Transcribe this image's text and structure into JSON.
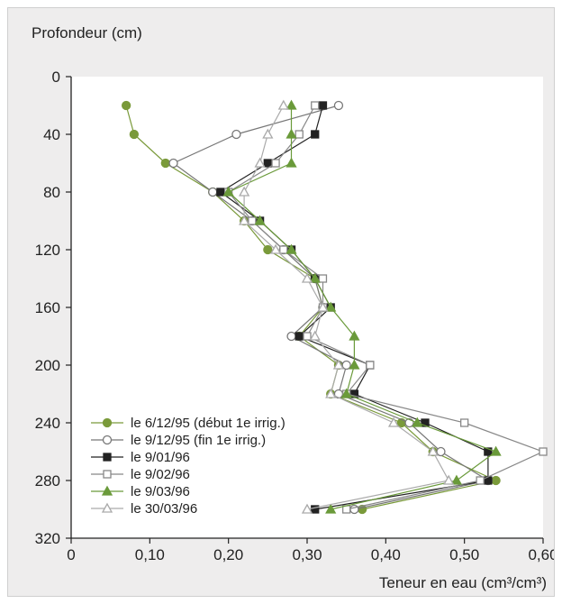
{
  "chart_data": {
    "type": "line",
    "ylabel": "Profondeur (cm)",
    "xlabel": "Teneur en eau (cm³/cm³)",
    "xlim": [
      0,
      0.6
    ],
    "ylim": [
      0,
      320
    ],
    "y_inverted": true,
    "grid": false,
    "legend_position": "bottom-left",
    "xticks": [
      "0",
      "0,10",
      "0,20",
      "0,30",
      "0,40",
      "0,50",
      "0,60"
    ],
    "xtick_values": [
      0,
      0.1,
      0.2,
      0.3,
      0.4,
      0.5,
      0.6
    ],
    "yticks": [
      "0",
      "40",
      "80",
      "120",
      "160",
      "200",
      "240",
      "280",
      "320"
    ],
    "ytick_values": [
      0,
      40,
      80,
      120,
      160,
      200,
      240,
      280,
      320
    ],
    "series": [
      {
        "name": "le 6/12/95 (début 1e irrig.)",
        "marker": "circle-filled",
        "color": "#7a9a3a",
        "points": [
          [
            0.07,
            20
          ],
          [
            0.08,
            40
          ],
          [
            0.12,
            60
          ],
          [
            0.18,
            80
          ],
          [
            0.22,
            100
          ],
          [
            0.25,
            120
          ],
          [
            0.31,
            140
          ],
          [
            0.32,
            160
          ],
          [
            0.29,
            180
          ],
          [
            0.34,
            200
          ],
          [
            0.33,
            220
          ],
          [
            0.42,
            240
          ],
          [
            0.46,
            260
          ],
          [
            0.54,
            280
          ],
          [
            0.37,
            300
          ]
        ]
      },
      {
        "name": "le 9/12/95 (fin 1e irrig.)",
        "marker": "circle-open",
        "color": "#777777",
        "points": [
          [
            0.34,
            20
          ],
          [
            0.21,
            40
          ],
          [
            0.13,
            60
          ],
          [
            0.18,
            80
          ],
          [
            0.23,
            100
          ],
          [
            0.27,
            120
          ],
          [
            0.31,
            140
          ],
          [
            0.32,
            160
          ],
          [
            0.28,
            180
          ],
          [
            0.35,
            200
          ],
          [
            0.34,
            220
          ],
          [
            0.43,
            240
          ],
          [
            0.47,
            260
          ],
          [
            0.53,
            280
          ],
          [
            0.36,
            300
          ]
        ]
      },
      {
        "name": "le 9/01/96",
        "marker": "square-filled",
        "color": "#222222",
        "points": [
          [
            0.32,
            20
          ],
          [
            0.31,
            40
          ],
          [
            0.25,
            60
          ],
          [
            0.19,
            80
          ],
          [
            0.24,
            100
          ],
          [
            0.28,
            120
          ],
          [
            0.31,
            140
          ],
          [
            0.33,
            160
          ],
          [
            0.29,
            180
          ],
          [
            0.38,
            200
          ],
          [
            0.36,
            220
          ],
          [
            0.45,
            240
          ],
          [
            0.53,
            260
          ],
          [
            0.53,
            280
          ],
          [
            0.31,
            300
          ]
        ]
      },
      {
        "name": "le 9/02/96",
        "marker": "square-open",
        "color": "#888888",
        "points": [
          [
            0.31,
            20
          ],
          [
            0.29,
            40
          ],
          [
            0.26,
            60
          ],
          [
            0.2,
            80
          ],
          [
            0.23,
            100
          ],
          [
            0.27,
            120
          ],
          [
            0.32,
            140
          ],
          [
            0.32,
            160
          ],
          [
            0.3,
            180
          ],
          [
            0.38,
            200
          ],
          [
            0.35,
            220
          ],
          [
            0.5,
            240
          ],
          [
            0.6,
            260
          ],
          [
            0.52,
            280
          ],
          [
            0.35,
            300
          ]
        ]
      },
      {
        "name": "le 9/03/96",
        "marker": "triangle-filled",
        "color": "#6a9a3a",
        "points": [
          [
            0.28,
            20
          ],
          [
            0.28,
            40
          ],
          [
            0.28,
            60
          ],
          [
            0.2,
            80
          ],
          [
            0.24,
            100
          ],
          [
            0.28,
            120
          ],
          [
            0.31,
            140
          ],
          [
            0.33,
            160
          ],
          [
            0.36,
            180
          ],
          [
            0.36,
            200
          ],
          [
            0.35,
            220
          ],
          [
            0.44,
            240
          ],
          [
            0.54,
            260
          ],
          [
            0.49,
            280
          ],
          [
            0.33,
            300
          ]
        ]
      },
      {
        "name": "le 30/03/96",
        "marker": "triangle-open",
        "color": "#aaaaaa",
        "points": [
          [
            0.27,
            20
          ],
          [
            0.25,
            40
          ],
          [
            0.24,
            60
          ],
          [
            0.22,
            80
          ],
          [
            0.22,
            100
          ],
          [
            0.26,
            120
          ],
          [
            0.3,
            140
          ],
          [
            0.32,
            160
          ],
          [
            0.31,
            180
          ],
          [
            0.34,
            200
          ],
          [
            0.33,
            220
          ],
          [
            0.41,
            240
          ],
          [
            0.46,
            260
          ],
          [
            0.48,
            280
          ],
          [
            0.3,
            300
          ]
        ]
      }
    ]
  }
}
